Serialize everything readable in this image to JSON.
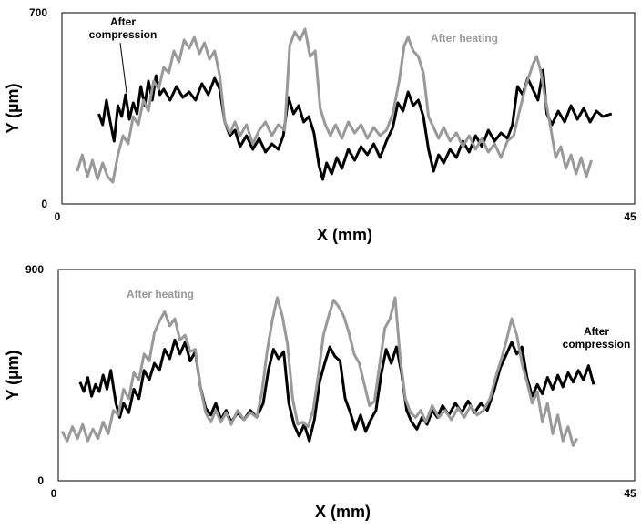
{
  "chart_data": [
    {
      "type": "line",
      "xlabel": "X (mm)",
      "ylabel": "Y (µm)",
      "xlim": [
        0,
        45
      ],
      "xticks": [
        0,
        45
      ],
      "ylim": [
        0,
        700
      ],
      "yticks": [
        0,
        700
      ],
      "series": [
        {
          "name": "After compression",
          "color": "#000000",
          "x": [
            2.9,
            3.2,
            3.5,
            3.8,
            4.1,
            4.4,
            4.7,
            5.0,
            5.3,
            5.6,
            5.9,
            6.2,
            6.5,
            6.8,
            7.1,
            7.4,
            7.7,
            8.0,
            8.5,
            9.0,
            9.5,
            10.0,
            10.5,
            11.0,
            11.5,
            12.0,
            12.4,
            12.8,
            13.2,
            13.6,
            14.0,
            14.5,
            15.0,
            15.5,
            16.0,
            16.5,
            17.0,
            17.4,
            17.8,
            18.2,
            18.6,
            19.0,
            19.4,
            19.8,
            20.2,
            20.5,
            20.8,
            21.2,
            21.6,
            22.0,
            22.5,
            23.0,
            23.5,
            24.0,
            24.5,
            25.0,
            25.5,
            26.0,
            26.4,
            26.8,
            27.2,
            27.6,
            28.0,
            28.4,
            28.8,
            29.2,
            29.6,
            30.0,
            30.5,
            31.0,
            31.5,
            32.0,
            32.5,
            33.0,
            33.5,
            34.0,
            34.5,
            35.0,
            35.4,
            35.8,
            36.2,
            36.6,
            37.0,
            37.4,
            37.8,
            38.1,
            38.5,
            39.0,
            39.5,
            40.0,
            40.5,
            41.0,
            41.5,
            42.0,
            42.5,
            43.2
          ],
          "values": [
            330,
            290,
            380,
            300,
            230,
            360,
            320,
            400,
            310,
            370,
            330,
            430,
            360,
            450,
            380,
            470,
            400,
            420,
            380,
            430,
            390,
            410,
            380,
            440,
            400,
            460,
            420,
            300,
            250,
            270,
            210,
            250,
            200,
            240,
            190,
            220,
            200,
            250,
            390,
            330,
            360,
            300,
            320,
            260,
            140,
            90,
            150,
            110,
            170,
            130,
            200,
            160,
            210,
            180,
            220,
            170,
            230,
            280,
            370,
            340,
            410,
            360,
            380,
            320,
            200,
            120,
            180,
            150,
            200,
            170,
            230,
            190,
            250,
            210,
            270,
            230,
            260,
            240,
            290,
            430,
            400,
            460,
            420,
            380,
            490,
            330,
            290,
            340,
            300,
            360,
            310,
            350,
            300,
            340,
            320,
            330
          ]
        },
        {
          "name": "After heating",
          "color": "#999999",
          "x": [
            1.2,
            1.6,
            2.0,
            2.4,
            2.8,
            3.2,
            3.6,
            4.0,
            4.4,
            4.8,
            5.2,
            5.6,
            6.0,
            6.4,
            6.8,
            7.2,
            7.6,
            8.0,
            8.4,
            8.8,
            9.2,
            9.6,
            10.0,
            10.4,
            10.8,
            11.2,
            11.6,
            12.0,
            12.4,
            12.8,
            13.2,
            13.6,
            14.0,
            14.5,
            15.0,
            15.5,
            16.0,
            16.5,
            17.0,
            17.5,
            17.9,
            18.3,
            18.7,
            19.1,
            19.5,
            19.9,
            20.3,
            20.7,
            21.1,
            21.5,
            22.0,
            22.5,
            23.0,
            23.5,
            24.0,
            24.5,
            25.0,
            25.5,
            26.0,
            26.5,
            26.9,
            27.2,
            27.6,
            28.0,
            28.4,
            28.8,
            29.2,
            29.6,
            30.0,
            30.5,
            31.0,
            31.5,
            32.0,
            32.5,
            33.0,
            33.5,
            34.0,
            34.5,
            35.0,
            35.5,
            36.0,
            36.5,
            37.0,
            37.3,
            37.6,
            38.0,
            38.4,
            38.8,
            39.2,
            39.6,
            40.0,
            40.4,
            40.8,
            41.2,
            41.6
          ],
          "values": [
            120,
            180,
            100,
            160,
            90,
            150,
            100,
            80,
            180,
            250,
            220,
            320,
            290,
            380,
            340,
            450,
            420,
            500,
            480,
            560,
            520,
            600,
            570,
            610,
            550,
            590,
            530,
            560,
            470,
            300,
            260,
            300,
            250,
            290,
            220,
            270,
            300,
            250,
            290,
            270,
            580,
            630,
            600,
            640,
            540,
            560,
            350,
            290,
            250,
            290,
            240,
            300,
            260,
            290,
            240,
            280,
            250,
            270,
            330,
            450,
            580,
            610,
            560,
            540,
            480,
            320,
            280,
            240,
            280,
            230,
            260,
            210,
            250,
            200,
            240,
            190,
            220,
            170,
            230,
            250,
            350,
            440,
            510,
            540,
            490,
            380,
            280,
            170,
            210,
            130,
            180,
            110,
            170,
            100,
            160
          ]
        }
      ]
    },
    {
      "type": "line",
      "xlabel": "X (mm)",
      "ylabel": "Y (µm)",
      "xlim": [
        0,
        45
      ],
      "xticks": [
        0,
        45
      ],
      "ylim": [
        0,
        900
      ],
      "yticks": [
        0,
        900
      ],
      "series": [
        {
          "name": "After compression",
          "color": "#000000",
          "x": [
            1.7,
            2.0,
            2.3,
            2.6,
            2.9,
            3.2,
            3.5,
            3.8,
            4.1,
            4.5,
            4.8,
            5.1,
            5.5,
            5.9,
            6.3,
            6.7,
            7.1,
            7.5,
            7.9,
            8.3,
            8.7,
            9.1,
            9.5,
            9.9,
            10.3,
            10.7,
            11.1,
            11.5,
            11.9,
            12.3,
            12.7,
            13.1,
            13.5,
            14.0,
            14.5,
            15.0,
            15.5,
            16.0,
            16.4,
            16.8,
            17.2,
            17.6,
            18.0,
            18.4,
            18.8,
            19.2,
            19.6,
            20.0,
            20.4,
            20.8,
            21.2,
            21.6,
            22.0,
            22.4,
            22.8,
            23.2,
            23.6,
            24.0,
            24.4,
            24.8,
            25.2,
            25.6,
            26.0,
            26.4,
            26.8,
            27.2,
            27.6,
            28.0,
            28.4,
            28.8,
            29.2,
            29.6,
            30.0,
            30.5,
            31.0,
            31.5,
            32.0,
            32.5,
            33.0,
            33.5,
            34.0,
            34.5,
            35.0,
            35.4,
            35.8,
            36.2,
            36.6,
            37.0,
            37.4,
            37.8,
            38.2,
            38.6,
            39.0,
            39.4,
            39.8,
            40.2,
            40.6,
            41.0,
            41.4,
            41.8
          ],
          "values": [
            420,
            380,
            440,
            360,
            410,
            380,
            450,
            390,
            470,
            330,
            270,
            330,
            290,
            390,
            350,
            470,
            430,
            500,
            470,
            560,
            520,
            600,
            540,
            590,
            510,
            550,
            400,
            310,
            280,
            330,
            260,
            300,
            250,
            290,
            260,
            300,
            270,
            330,
            470,
            560,
            520,
            550,
            330,
            240,
            190,
            240,
            170,
            260,
            420,
            500,
            570,
            530,
            510,
            350,
            290,
            220,
            280,
            210,
            260,
            300,
            450,
            560,
            500,
            570,
            460,
            300,
            250,
            220,
            270,
            240,
            300,
            270,
            320,
            280,
            330,
            290,
            340,
            290,
            330,
            300,
            380,
            480,
            540,
            590,
            540,
            570,
            440,
            360,
            410,
            370,
            440,
            390,
            450,
            400,
            460,
            420,
            470,
            430,
            490,
            410
          ]
        },
        {
          "name": "After heating",
          "color": "#999999",
          "x": [
            0.3,
            0.7,
            1.1,
            1.5,
            1.9,
            2.3,
            2.7,
            3.1,
            3.5,
            3.9,
            4.3,
            4.7,
            5.1,
            5.5,
            5.9,
            6.3,
            6.7,
            7.1,
            7.5,
            7.9,
            8.3,
            8.7,
            9.1,
            9.5,
            9.9,
            10.3,
            10.7,
            11.1,
            11.5,
            11.9,
            12.3,
            12.7,
            13.1,
            13.5,
            14.0,
            14.5,
            15.0,
            15.5,
            15.9,
            16.3,
            16.7,
            17.1,
            17.5,
            17.9,
            18.3,
            18.7,
            19.1,
            19.5,
            19.9,
            20.3,
            20.7,
            21.1,
            21.5,
            21.9,
            22.3,
            22.7,
            23.1,
            23.5,
            23.9,
            24.3,
            24.7,
            25.1,
            25.5,
            25.9,
            26.3,
            26.7,
            27.1,
            27.5,
            27.9,
            28.3,
            28.7,
            29.2,
            29.7,
            30.2,
            30.7,
            31.2,
            31.7,
            32.2,
            32.7,
            33.2,
            33.7,
            34.2,
            34.6,
            35.0,
            35.4,
            35.8,
            36.2,
            36.6,
            37.0,
            37.4,
            37.8,
            38.2,
            38.6,
            39.0,
            39.4,
            39.8,
            40.2,
            40.5
          ],
          "values": [
            210,
            170,
            230,
            180,
            240,
            170,
            220,
            180,
            250,
            200,
            300,
            280,
            390,
            350,
            460,
            430,
            540,
            510,
            630,
            680,
            720,
            660,
            690,
            600,
            620,
            550,
            560,
            400,
            290,
            250,
            300,
            250,
            290,
            240,
            300,
            260,
            290,
            270,
            380,
            550,
            680,
            780,
            700,
            580,
            350,
            240,
            250,
            230,
            300,
            450,
            620,
            700,
            770,
            740,
            700,
            630,
            540,
            500,
            410,
            320,
            340,
            500,
            650,
            690,
            780,
            520,
            350,
            290,
            270,
            300,
            250,
            320,
            270,
            300,
            260,
            310,
            270,
            320,
            280,
            300,
            350,
            450,
            520,
            600,
            690,
            620,
            500,
            420,
            330,
            380,
            250,
            330,
            200,
            280,
            170,
            230,
            150,
            180
          ]
        }
      ]
    }
  ]
}
